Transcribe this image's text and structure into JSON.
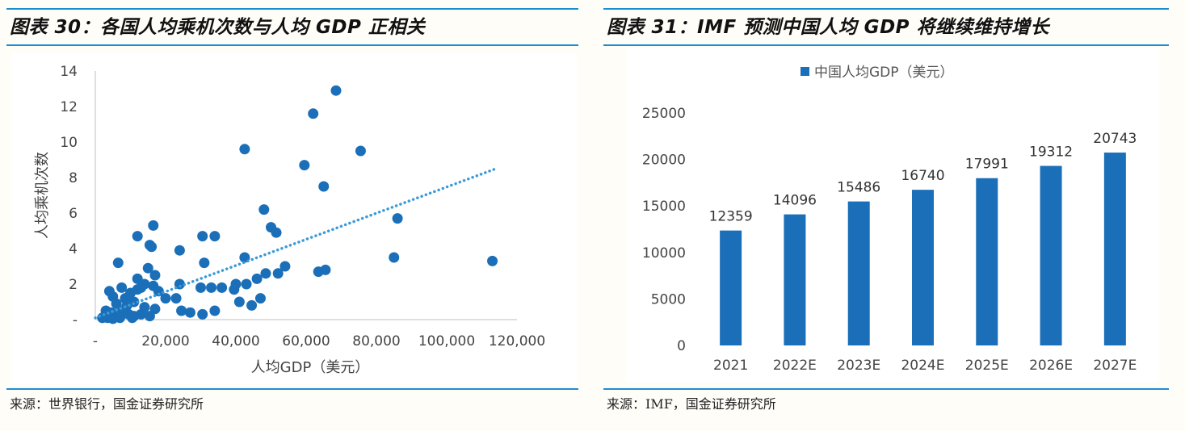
{
  "left_panel": {
    "title": "图表 30：各国人均乘机次数与人均 GDP 正相关",
    "source": "来源：世界银行，国金证券研究所"
  },
  "right_panel": {
    "title": "图表 31：IMF 预测中国人均 GDP 将继续维持增长",
    "source": "来源：IMF，国金证券研究所"
  },
  "colors": {
    "accent": "#1a8fd0",
    "marker": "#1a6fb8",
    "bar": "#1a6fb8",
    "trend": "#3a9ad8"
  },
  "chart_data": [
    {
      "type": "scatter",
      "xlabel": "人均GDP（美元）",
      "ylabel": "人均乘机次数",
      "xlim": [
        0,
        120000
      ],
      "ylim": [
        0,
        14
      ],
      "x_ticks": [
        0,
        20000,
        40000,
        60000,
        80000,
        100000,
        120000
      ],
      "x_tick_labels": [
        "-",
        "20,000",
        "40,000",
        "60,000",
        "80,000",
        "100,000",
        "120,000"
      ],
      "y_ticks": [
        0,
        2,
        4,
        6,
        8,
        10,
        12,
        14
      ],
      "y_tick_labels": [
        "-",
        "2",
        "4",
        "6",
        "8",
        "10",
        "12",
        "14"
      ],
      "trendline": {
        "style": "dotted",
        "from": [
          0,
          0.1
        ],
        "to": [
          114000,
          8.5
        ]
      },
      "grid": false,
      "points": [
        [
          68500,
          12.9
        ],
        [
          62000,
          11.6
        ],
        [
          42500,
          9.6
        ],
        [
          75500,
          9.5
        ],
        [
          59500,
          8.7
        ],
        [
          65000,
          7.5
        ],
        [
          48000,
          6.2
        ],
        [
          86000,
          5.7
        ],
        [
          16500,
          5.3
        ],
        [
          50000,
          5.2
        ],
        [
          51500,
          4.9
        ],
        [
          12000,
          4.7
        ],
        [
          30500,
          4.7
        ],
        [
          34000,
          4.7
        ],
        [
          15500,
          4.2
        ],
        [
          16000,
          4.1
        ],
        [
          24000,
          3.9
        ],
        [
          42500,
          3.5
        ],
        [
          85000,
          3.5
        ],
        [
          113000,
          3.3
        ],
        [
          6500,
          3.2
        ],
        [
          31000,
          3.2
        ],
        [
          54000,
          3.0
        ],
        [
          15000,
          2.9
        ],
        [
          63500,
          2.7
        ],
        [
          65500,
          2.8
        ],
        [
          48500,
          2.6
        ],
        [
          52000,
          2.6
        ],
        [
          17000,
          2.5
        ],
        [
          12000,
          2.3
        ],
        [
          46000,
          2.3
        ],
        [
          14000,
          2.0
        ],
        [
          24000,
          2.0
        ],
        [
          40000,
          2.0
        ],
        [
          43000,
          2.0
        ],
        [
          13000,
          1.8
        ],
        [
          16500,
          1.9
        ],
        [
          30000,
          1.8
        ],
        [
          33000,
          1.8
        ],
        [
          36000,
          1.8
        ],
        [
          18000,
          1.6
        ],
        [
          4000,
          1.6
        ],
        [
          7500,
          1.8
        ],
        [
          10000,
          1.5
        ],
        [
          12000,
          1.7
        ],
        [
          39500,
          1.7
        ],
        [
          5000,
          1.3
        ],
        [
          8500,
          1.2
        ],
        [
          11000,
          1.0
        ],
        [
          20000,
          1.2
        ],
        [
          23000,
          1.2
        ],
        [
          47000,
          1.2
        ],
        [
          41000,
          1.0
        ],
        [
          44500,
          0.8
        ],
        [
          6000,
          0.9
        ],
        [
          9000,
          0.8
        ],
        [
          14000,
          0.7
        ],
        [
          17000,
          0.6
        ],
        [
          24500,
          0.5
        ],
        [
          27000,
          0.4
        ],
        [
          30500,
          0.3
        ],
        [
          34000,
          0.5
        ],
        [
          3000,
          0.5
        ],
        [
          4500,
          0.4
        ],
        [
          6000,
          0.3
        ],
        [
          7500,
          0.5
        ],
        [
          9500,
          0.3
        ],
        [
          11000,
          0.2
        ],
        [
          13000,
          0.3
        ],
        [
          15500,
          0.2
        ],
        [
          2000,
          0.1
        ],
        [
          3500,
          0.1
        ],
        [
          5000,
          0.05
        ],
        [
          7000,
          0.1
        ],
        [
          10500,
          0.1
        ]
      ]
    },
    {
      "type": "bar",
      "legend": [
        "中国人均GDP（美元）"
      ],
      "legend_position": "top",
      "categories": [
        "2021",
        "2022E",
        "2023E",
        "2024E",
        "2025E",
        "2026E",
        "2027E"
      ],
      "series": [
        {
          "name": "中国人均GDP（美元）",
          "values": [
            12359,
            14096,
            15486,
            16740,
            17991,
            19312,
            20743
          ]
        }
      ],
      "data_labels": [
        "12359",
        "14096",
        "15486",
        "16740",
        "17991",
        "19312",
        "20743"
      ],
      "ylim": [
        0,
        25000
      ],
      "y_ticks": [
        0,
        5000,
        10000,
        15000,
        20000,
        25000
      ],
      "grid": false
    }
  ]
}
